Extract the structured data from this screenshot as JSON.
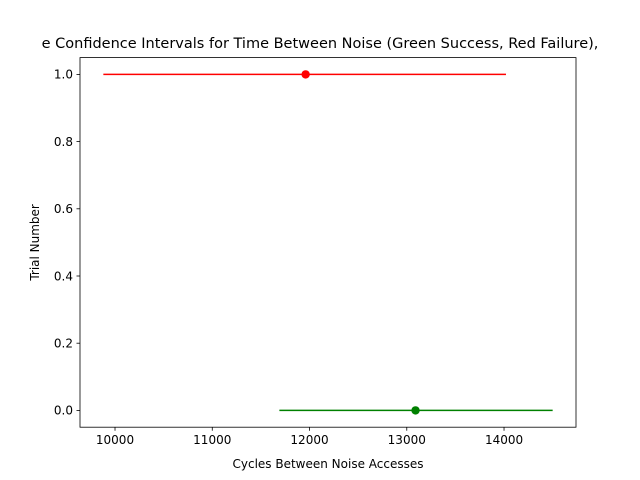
{
  "chart_data": {
    "type": "scatter",
    "title": "e Confidence Intervals for Time Between Noise (Green Success, Red Failure),",
    "xlabel": "Cycles Between Noise Accesses",
    "ylabel": "Trial Number",
    "xlim": [
      9640,
      14740
    ],
    "ylim": [
      -0.05,
      1.05
    ],
    "xticks": [
      10000,
      11000,
      12000,
      13000,
      14000
    ],
    "yticks": [
      0.0,
      0.2,
      0.4,
      0.6,
      0.8,
      1.0
    ],
    "xtick_labels": [
      "10000",
      "11000",
      "12000",
      "13000",
      "14000"
    ],
    "ytick_labels": [
      "0.0",
      "0.2",
      "0.4",
      "0.6",
      "0.8",
      "1.0"
    ],
    "grid": false,
    "legend": "none",
    "intervals": [
      {
        "trial": 0,
        "mean": 13090,
        "low": 11690,
        "high": 14500,
        "color": "#008000"
      },
      {
        "trial": 1,
        "mean": 11960,
        "low": 9880,
        "high": 14020,
        "color": "#ff0000"
      }
    ]
  }
}
